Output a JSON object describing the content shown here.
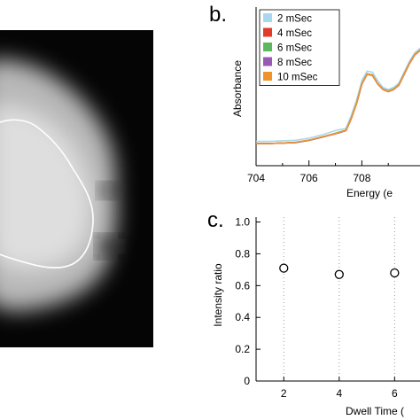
{
  "panel_a": {
    "image_kind": "grayscale X-ray micrograph with outlined region"
  },
  "panel_b": {
    "letter": "b."
  },
  "panel_c": {
    "letter": "c."
  },
  "chart_data": [
    {
      "type": "line",
      "panel": "b",
      "xlabel": "Energy (e",
      "ylabel": "Absorbance",
      "xlim": [
        704,
        710.4
      ],
      "ylim": [
        0,
        1
      ],
      "x_ticks": [
        704,
        706,
        708
      ],
      "legend_placement": "top-left",
      "grid": false,
      "x": [
        704,
        704.5,
        705,
        705.5,
        706,
        706.5,
        707,
        707.2,
        707.4,
        707.6,
        707.8,
        708,
        708.2,
        708.4,
        708.6,
        708.8,
        709,
        709.2,
        709.4,
        709.6,
        709.8,
        710,
        710.3
      ],
      "series": [
        {
          "name": "2 mSec",
          "color": "#a8d8f0",
          "values": [
            0.02,
            0.02,
            0.025,
            0.03,
            0.05,
            0.08,
            0.12,
            0.13,
            0.14,
            0.26,
            0.4,
            0.58,
            0.67,
            0.66,
            0.58,
            0.52,
            0.5,
            0.52,
            0.56,
            0.66,
            0.76,
            0.84,
            0.9
          ]
        },
        {
          "name": "4 mSec",
          "color": "#e23b2a",
          "values": [
            0.0,
            0.0,
            0.005,
            0.01,
            0.03,
            0.06,
            0.09,
            0.105,
            0.12,
            0.23,
            0.37,
            0.55,
            0.64,
            0.63,
            0.55,
            0.5,
            0.48,
            0.5,
            0.54,
            0.64,
            0.74,
            0.82,
            0.88
          ]
        },
        {
          "name": "6 mSec",
          "color": "#5cb85c",
          "values": [
            0.0,
            0.0,
            0.005,
            0.01,
            0.03,
            0.06,
            0.095,
            0.11,
            0.125,
            0.235,
            0.375,
            0.555,
            0.645,
            0.635,
            0.555,
            0.505,
            0.485,
            0.505,
            0.545,
            0.645,
            0.745,
            0.825,
            0.885
          ]
        },
        {
          "name": "8 mSec",
          "color": "#9b59b6",
          "values": [
            0.0,
            0.0,
            0.005,
            0.01,
            0.03,
            0.06,
            0.09,
            0.105,
            0.12,
            0.23,
            0.37,
            0.55,
            0.64,
            0.63,
            0.55,
            0.5,
            0.48,
            0.5,
            0.54,
            0.64,
            0.74,
            0.82,
            0.88
          ]
        },
        {
          "name": "10 mSec",
          "color": "#f0932b",
          "values": [
            0.0,
            0.0,
            0.005,
            0.012,
            0.032,
            0.062,
            0.092,
            0.107,
            0.122,
            0.232,
            0.372,
            0.552,
            0.642,
            0.632,
            0.552,
            0.502,
            0.482,
            0.502,
            0.542,
            0.642,
            0.742,
            0.822,
            0.882
          ]
        }
      ]
    },
    {
      "type": "scatter",
      "panel": "c",
      "xlabel": "Dwell Time (",
      "ylabel": "Intensity ratio",
      "xlim": [
        1,
        7.3
      ],
      "ylim": [
        0,
        1.0
      ],
      "x_ticks": [
        2,
        4,
        6
      ],
      "y_ticks": [
        "0",
        "0.2",
        "0.4",
        "0.6",
        "0.8",
        "1.0"
      ],
      "grid": "vertical dotted lines at x ticks",
      "x": [
        2,
        4,
        6
      ],
      "y": [
        0.71,
        0.67,
        0.68
      ]
    }
  ]
}
